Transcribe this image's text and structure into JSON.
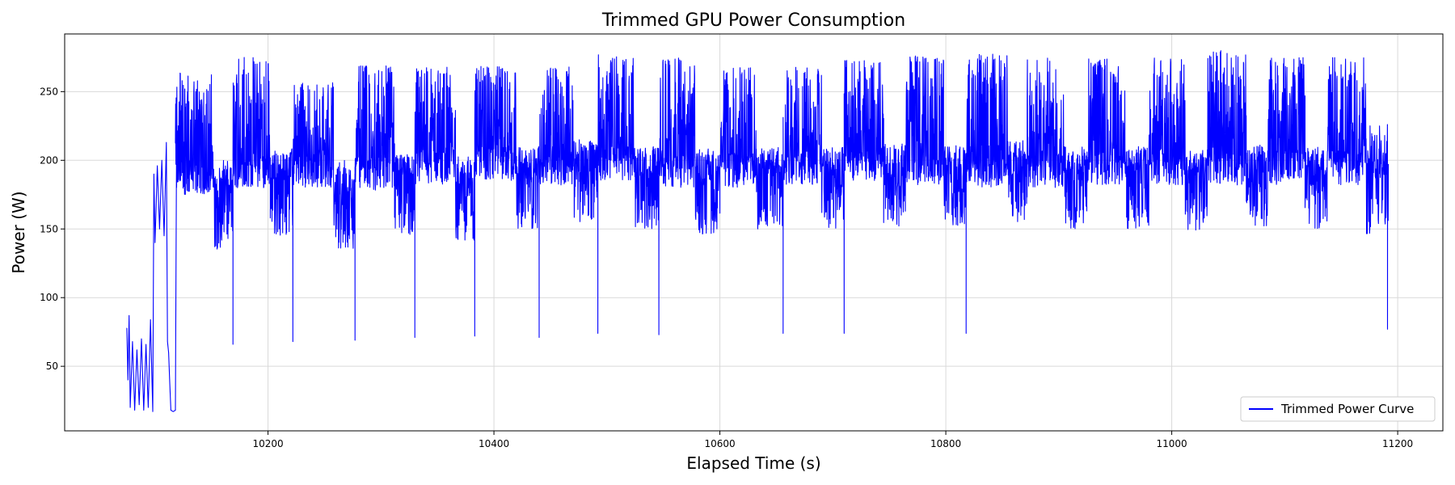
{
  "chart_data": {
    "type": "line",
    "title": "Trimmed GPU Power Consumption",
    "xlabel": "Elapsed Time (s)",
    "ylabel": "Power (W)",
    "xlim": [
      10020,
      11240
    ],
    "ylim": [
      3,
      292
    ],
    "xticks": [
      10200,
      10400,
      10600,
      10800,
      11000,
      11200
    ],
    "yticks": [
      50,
      100,
      150,
      200,
      250
    ],
    "grid": true,
    "legend_position": "lower-right",
    "series": [
      {
        "name": "Trimmed Power Curve",
        "color": "#0000ff",
        "idle_phase": [
          {
            "x": 10075,
            "y": 78
          },
          {
            "x": 10076,
            "y": 40
          },
          {
            "x": 10077,
            "y": 87
          },
          {
            "x": 10078,
            "y": 20
          },
          {
            "x": 10080,
            "y": 68
          },
          {
            "x": 10082,
            "y": 18
          },
          {
            "x": 10084,
            "y": 62
          },
          {
            "x": 10086,
            "y": 22
          },
          {
            "x": 10088,
            "y": 70
          },
          {
            "x": 10090,
            "y": 18
          },
          {
            "x": 10092,
            "y": 66
          },
          {
            "x": 10094,
            "y": 20
          },
          {
            "x": 10096,
            "y": 84
          },
          {
            "x": 10098,
            "y": 17
          },
          {
            "x": 10099,
            "y": 190
          },
          {
            "x": 10100,
            "y": 140
          },
          {
            "x": 10102,
            "y": 196
          },
          {
            "x": 10104,
            "y": 150
          },
          {
            "x": 10106,
            "y": 200
          },
          {
            "x": 10108,
            "y": 145
          },
          {
            "x": 10110,
            "y": 213
          },
          {
            "x": 10111,
            "y": 68
          },
          {
            "x": 10112,
            "y": 60
          },
          {
            "x": 10113,
            "y": 38
          },
          {
            "x": 10114,
            "y": 18
          },
          {
            "x": 10116,
            "y": 17
          },
          {
            "x": 10118,
            "y": 18
          },
          {
            "x": 10119,
            "y": 210
          }
        ],
        "blocks": [
          {
            "start": 10118,
            "end": 10152,
            "level": "high",
            "min": 175,
            "max": 265
          },
          {
            "start": 10152,
            "end": 10169,
            "level": "low",
            "min": 135,
            "max": 200
          },
          {
            "start": 10169,
            "end": 10202,
            "level": "high",
            "min": 180,
            "max": 275
          },
          {
            "start": 10202,
            "end": 10222,
            "level": "low",
            "min": 145,
            "max": 210
          },
          {
            "start": 10222,
            "end": 10258,
            "level": "high",
            "min": 180,
            "max": 257
          },
          {
            "start": 10258,
            "end": 10277,
            "level": "low",
            "min": 135,
            "max": 200
          },
          {
            "start": 10277,
            "end": 10312,
            "level": "high",
            "min": 178,
            "max": 269
          },
          {
            "start": 10312,
            "end": 10330,
            "level": "low",
            "min": 145,
            "max": 205
          },
          {
            "start": 10330,
            "end": 10366,
            "level": "high",
            "min": 182,
            "max": 268
          },
          {
            "start": 10366,
            "end": 10383,
            "level": "low",
            "min": 140,
            "max": 205
          },
          {
            "start": 10383,
            "end": 10420,
            "level": "high",
            "min": 185,
            "max": 270
          },
          {
            "start": 10420,
            "end": 10440,
            "level": "low",
            "min": 150,
            "max": 210
          },
          {
            "start": 10440,
            "end": 10470,
            "level": "high",
            "min": 182,
            "max": 270
          },
          {
            "start": 10470,
            "end": 10492,
            "level": "low",
            "min": 155,
            "max": 215
          },
          {
            "start": 10492,
            "end": 10525,
            "level": "high",
            "min": 185,
            "max": 277
          },
          {
            "start": 10525,
            "end": 10546,
            "level": "low",
            "min": 150,
            "max": 210
          },
          {
            "start": 10546,
            "end": 10578,
            "level": "high",
            "min": 180,
            "max": 275
          },
          {
            "start": 10578,
            "end": 10600,
            "level": "low",
            "min": 145,
            "max": 210
          },
          {
            "start": 10600,
            "end": 10632,
            "level": "high",
            "min": 180,
            "max": 268
          },
          {
            "start": 10632,
            "end": 10656,
            "level": "low",
            "min": 150,
            "max": 210
          },
          {
            "start": 10656,
            "end": 10690,
            "level": "high",
            "min": 182,
            "max": 270
          },
          {
            "start": 10690,
            "end": 10710,
            "level": "low",
            "min": 150,
            "max": 210
          },
          {
            "start": 10710,
            "end": 10745,
            "level": "high",
            "min": 185,
            "max": 273
          },
          {
            "start": 10745,
            "end": 10765,
            "level": "low",
            "min": 152,
            "max": 212
          },
          {
            "start": 10765,
            "end": 10798,
            "level": "high",
            "min": 182,
            "max": 276
          },
          {
            "start": 10798,
            "end": 10818,
            "level": "low",
            "min": 152,
            "max": 210
          },
          {
            "start": 10818,
            "end": 10855,
            "level": "high",
            "min": 180,
            "max": 278
          },
          {
            "start": 10855,
            "end": 10872,
            "level": "low",
            "min": 155,
            "max": 212
          },
          {
            "start": 10872,
            "end": 10905,
            "level": "high",
            "min": 180,
            "max": 275
          },
          {
            "start": 10905,
            "end": 10925,
            "level": "low",
            "min": 150,
            "max": 210
          },
          {
            "start": 10925,
            "end": 10960,
            "level": "high",
            "min": 182,
            "max": 274
          },
          {
            "start": 10960,
            "end": 10980,
            "level": "low",
            "min": 150,
            "max": 210
          },
          {
            "start": 10980,
            "end": 11012,
            "level": "high",
            "min": 182,
            "max": 277
          },
          {
            "start": 11012,
            "end": 11032,
            "level": "low",
            "min": 148,
            "max": 205
          },
          {
            "start": 11032,
            "end": 11066,
            "level": "high",
            "min": 182,
            "max": 280
          },
          {
            "start": 11066,
            "end": 11085,
            "level": "low",
            "min": 152,
            "max": 210
          },
          {
            "start": 11085,
            "end": 11118,
            "level": "high",
            "min": 182,
            "max": 275
          },
          {
            "start": 11118,
            "end": 11138,
            "level": "low",
            "min": 150,
            "max": 205
          },
          {
            "start": 11138,
            "end": 11172,
            "level": "high",
            "min": 182,
            "max": 275
          },
          {
            "start": 11172,
            "end": 11192,
            "level": "low",
            "min": 145,
            "max": 230
          }
        ],
        "dips": [
          {
            "x": 10169,
            "y": 66
          },
          {
            "x": 10222,
            "y": 68
          },
          {
            "x": 10277,
            "y": 69
          },
          {
            "x": 10330,
            "y": 71
          },
          {
            "x": 10383,
            "y": 72
          },
          {
            "x": 10440,
            "y": 71
          },
          {
            "x": 10492,
            "y": 74
          },
          {
            "x": 10546,
            "y": 73
          },
          {
            "x": 10656,
            "y": 74
          },
          {
            "x": 10710,
            "y": 74
          },
          {
            "x": 10818,
            "y": 74
          },
          {
            "x": 11191,
            "y": 77
          }
        ]
      }
    ]
  }
}
